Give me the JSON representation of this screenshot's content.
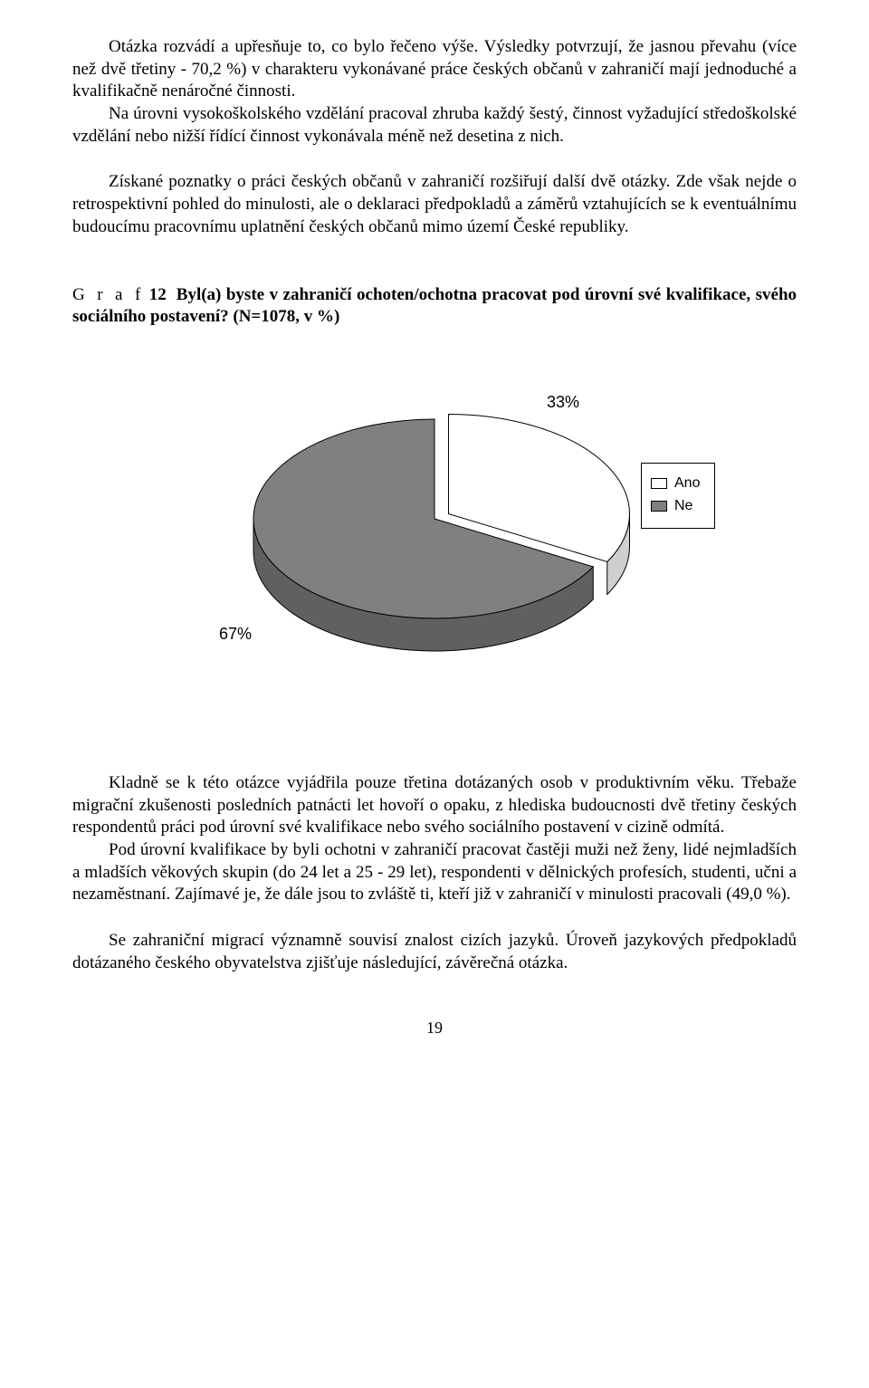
{
  "para1": "Otázka rozvádí a upřesňuje to, co bylo řečeno výše. Výsledky potvrzují, že jasnou převahu (více než dvě třetiny - 70,2 %) v charakteru vykonávané práce českých občanů v zahraničí mají jednoduché a kvalifikačně nenáročné činnosti.",
  "para2": "Na úrovni vysokoškolského vzdělání pracoval zhruba každý šestý, činnost vyžadující středoškolské vzdělání nebo nižší řídící činnost vykonávala méně než desetina z nich.",
  "para3": "Získané poznatky o práci českých občanů v zahraničí rozšiřují další dvě otázky. Zde však nejde o retrospektivní pohled do minulosti, ale o deklaraci předpokladů a záměrů vztahujících se k eventuálnímu budoucímu pracovnímu uplatnění českých občanů mimo území České republiky.",
  "graf_word": "G r a f",
  "graf_num": "12",
  "graf_title_main": "Byl(a) byste v zahraničí ochoten/ochotna pracovat pod úrovní své kvalifikace, svého sociálního postavení? (N=1078, v %)",
  "chart": {
    "type": "pie",
    "slices": [
      {
        "label": "Ano",
        "value": 33,
        "color": "#ffffff",
        "stroke": "#000000"
      },
      {
        "label": "Ne",
        "value": 67,
        "color": "#808080",
        "stroke": "#000000"
      }
    ],
    "label_ano": "33%",
    "label_ne": "67%",
    "depth_color": "#606060",
    "background": "#ffffff",
    "legend_items": [
      {
        "symbol": "□",
        "text": "Ano"
      },
      {
        "symbol": "■",
        "text": "Ne"
      }
    ]
  },
  "para4": "Kladně se k této otázce vyjádřila pouze třetina dotázaných osob v produktivním věku. Třebaže migrační zkušenosti posledních patnácti let hovoří o opaku, z hlediska budoucnosti dvě třetiny českých respondentů práci pod úrovní své kvalifikace nebo svého sociálního postavení v cizině odmítá.",
  "para5": "Pod úrovní kvalifikace by byli ochotni v zahraničí pracovat častěji muži než ženy, lidé nejmladších a mladších věkových skupin (do 24 let a 25 - 29 let), respondenti v dělnických profesích, studenti, učni a nezaměstnaní. Zajímavé je, že dále jsou to zvláště ti, kteří již v zahraničí v minulosti pracovali (49,0 %).",
  "para6": "Se zahraniční migrací významně souvisí znalost cizích jazyků. Úroveň jazykových předpokladů dotázaného českého obyvatelstva zjišťuje následující, závěrečná otázka.",
  "page_number": "19"
}
